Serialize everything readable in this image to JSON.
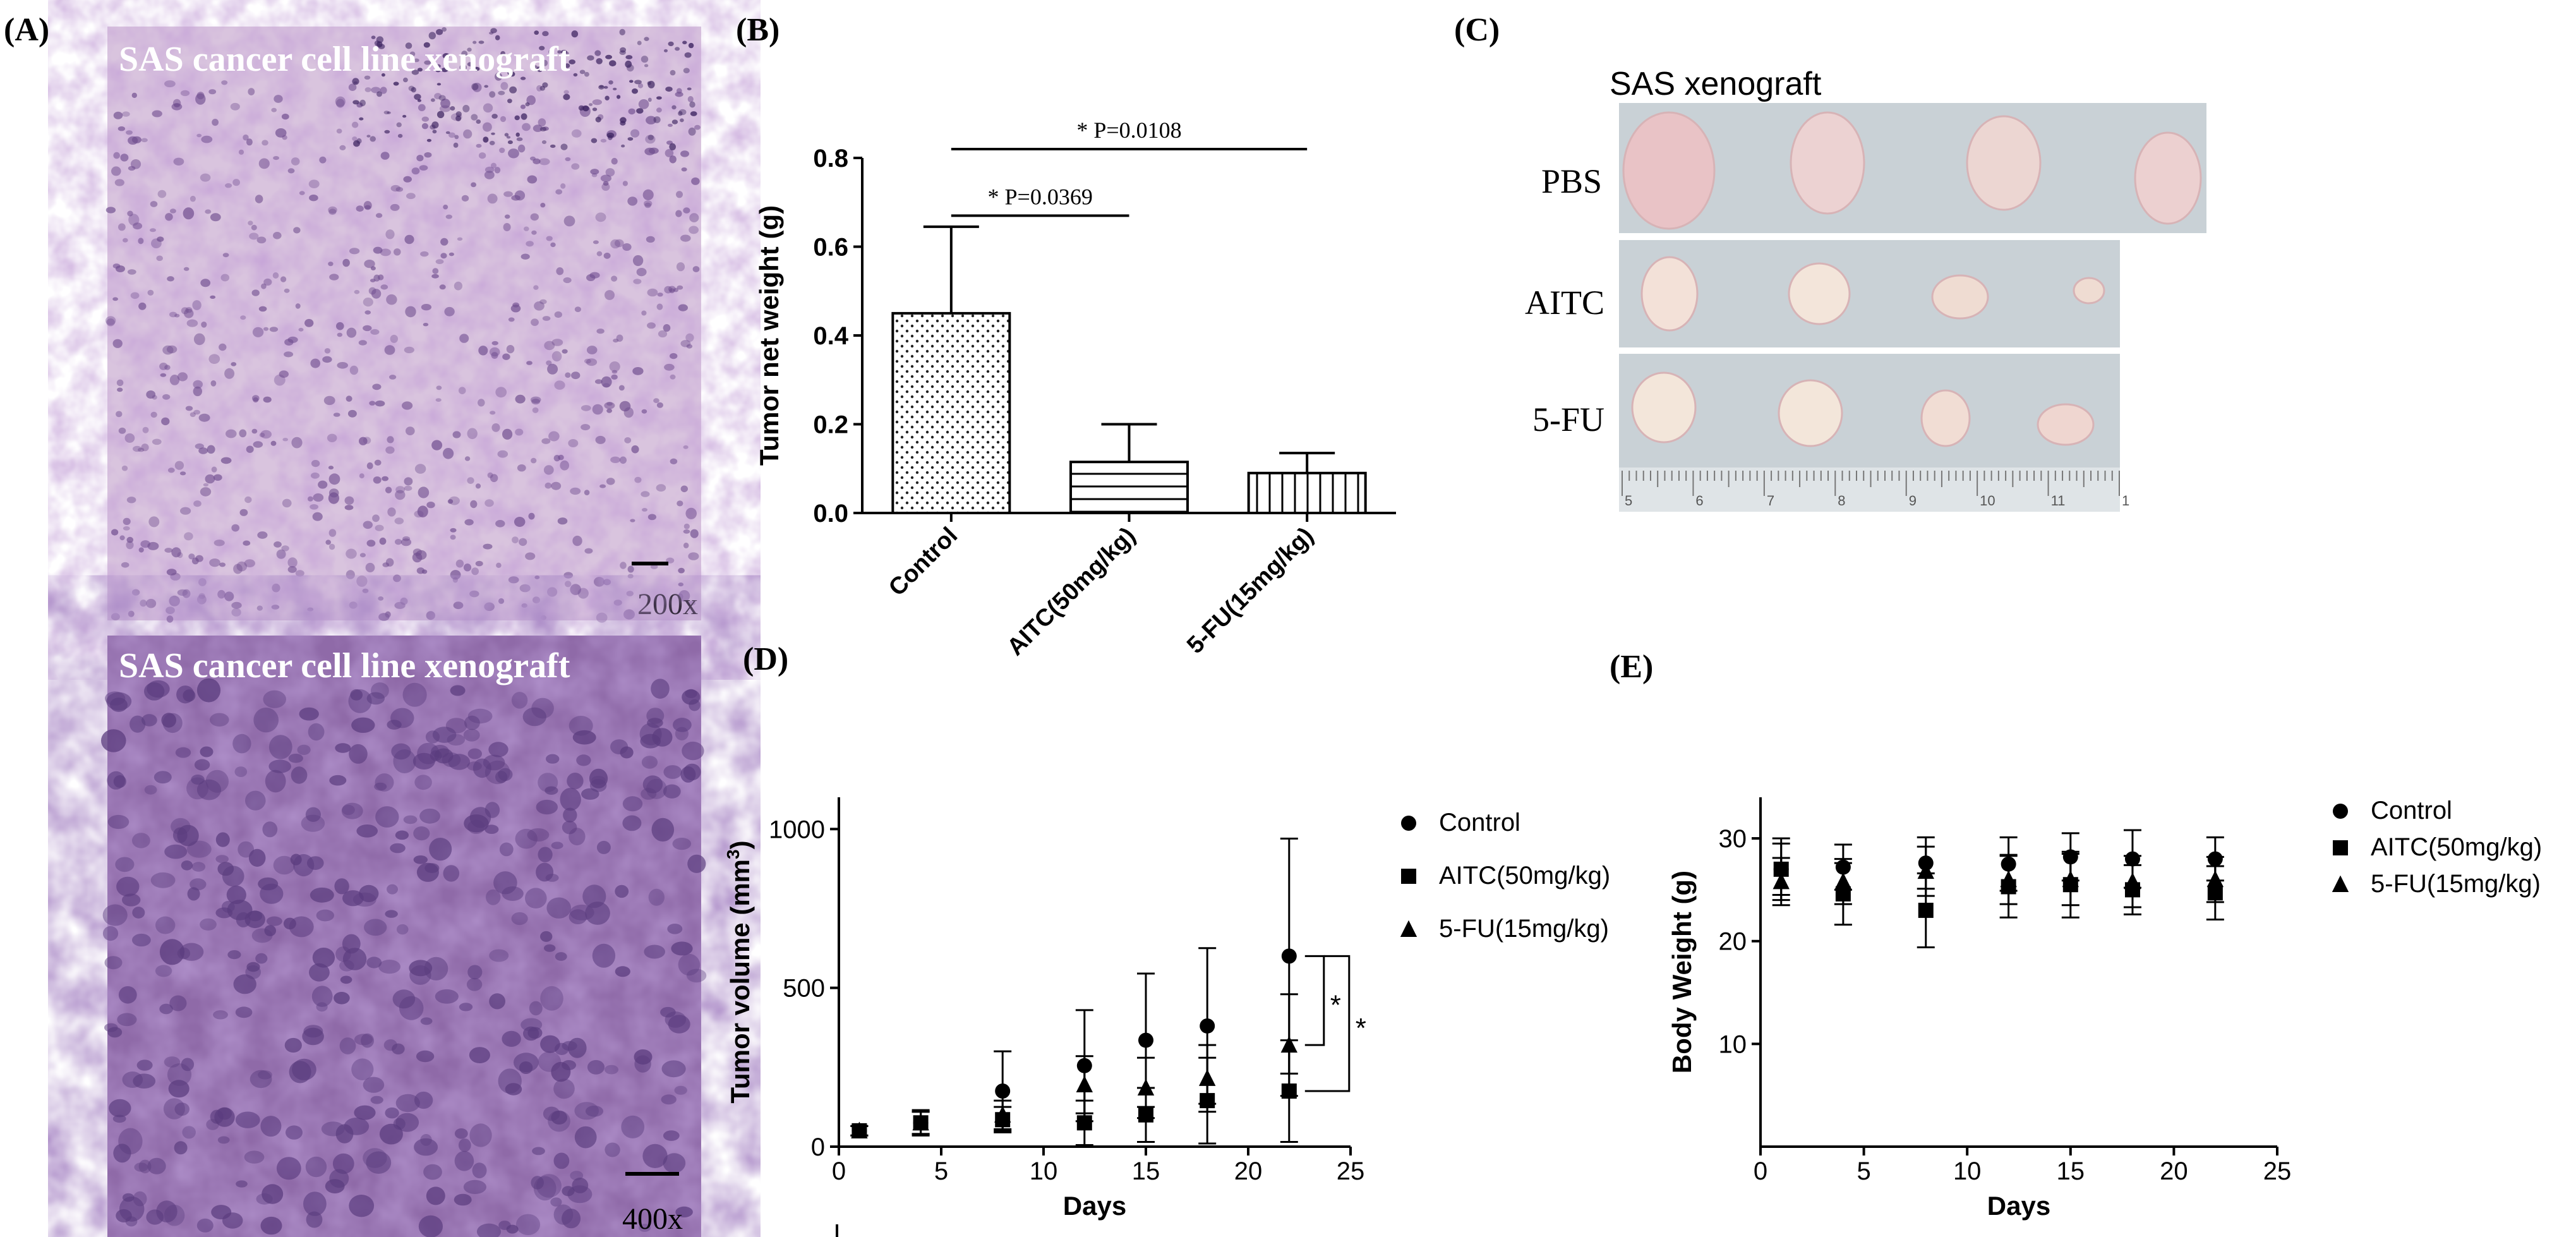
{
  "figure": {
    "panel_labels": {
      "a": "(A)",
      "b": "(B)",
      "c": "(C)",
      "d": "(D)",
      "e": "(E)"
    },
    "panel_a": {
      "top_caption": "SAS cancer cell line xenograft",
      "top_magnification": "200x",
      "bottom_caption": "SAS cancer cell line xenograft",
      "bottom_magnification": "400x",
      "colors": {
        "tissue_light": "#d9c4de",
        "tissue_dark": "#8f6aa8",
        "nucleus": "#6f4d8e"
      }
    },
    "panel_c": {
      "title": "SAS xenograft",
      "rows": [
        "PBS",
        "AITC",
        "5-FU"
      ],
      "ruler_numbers": [
        "5",
        "6",
        "7",
        "8",
        "9",
        "10",
        "11",
        "1"
      ]
    }
  },
  "chart_data": [
    {
      "id": "B",
      "type": "bar",
      "categories": [
        "Control",
        "AITC(50mg/kg)",
        "5-FU(15mg/kg)"
      ],
      "values": [
        0.45,
        0.115,
        0.09
      ],
      "errors": [
        0.195,
        0.085,
        0.045
      ],
      "patterns": [
        "dots",
        "horizontal",
        "vertical"
      ],
      "ylabel": "Tumor net weight (g)",
      "xlabel": "",
      "ylim": [
        0,
        0.8
      ],
      "yticks": [
        0.0,
        0.2,
        0.4,
        0.6,
        0.8
      ],
      "ytick_labels": [
        "0.0",
        "0.2",
        "0.4",
        "0.6",
        "0.8"
      ],
      "annotations": [
        {
          "from": 0,
          "to": 1,
          "text": "* P=0.0369",
          "y": 0.67
        },
        {
          "from": 0,
          "to": 2,
          "text": "* P=0.0108",
          "y": 0.82
        }
      ]
    },
    {
      "id": "D",
      "type": "scatter",
      "xlabel": "Days",
      "ylabel": "Tumor volume (mm",
      "ylabel_sup": "3",
      "ylabel_close": ")",
      "xlim": [
        0,
        25
      ],
      "ylim": [
        0,
        1100
      ],
      "xticks": [
        0,
        5,
        10,
        15,
        20,
        25
      ],
      "xtick_labels": [
        "0",
        "5",
        "10",
        "15",
        "20",
        "25"
      ],
      "yticks": [
        0,
        500,
        1000
      ],
      "ytick_labels": [
        "0",
        "500",
        "1000"
      ],
      "series": [
        {
          "name": "Control",
          "marker": "circle",
          "x": [
            1,
            4,
            8,
            12,
            15,
            18,
            22
          ],
          "y": [
            50,
            75,
            175,
            255,
            335,
            380,
            600
          ],
          "err": [
            15,
            40,
            125,
            175,
            210,
            245,
            370
          ]
        },
        {
          "name": "AITC(50mg/kg)",
          "marker": "square",
          "x": [
            1,
            4,
            8,
            12,
            15,
            18,
            22
          ],
          "y": [
            50,
            75,
            85,
            75,
            100,
            145,
            175
          ],
          "err": [
            15,
            35,
            40,
            70,
            85,
            135,
            160
          ]
        },
        {
          "name": "5-FU(15mg/kg)",
          "marker": "triangle",
          "x": [
            1,
            4,
            8,
            12,
            15,
            18,
            22
          ],
          "y": [
            50,
            75,
            100,
            195,
            185,
            215,
            320
          ],
          "err": [
            15,
            35,
            45,
            90,
            95,
            105,
            160
          ]
        }
      ],
      "significance": [
        "*",
        "*"
      ]
    },
    {
      "id": "E",
      "type": "scatter",
      "xlabel": "Days",
      "ylabel": "Body Weight (g)",
      "xlim": [
        0,
        25
      ],
      "ylim": [
        0,
        34
      ],
      "xticks": [
        0,
        5,
        10,
        15,
        20,
        25
      ],
      "xtick_labels": [
        "0",
        "5",
        "10",
        "15",
        "20",
        "25"
      ],
      "yticks": [
        10,
        20,
        30
      ],
      "ytick_labels": [
        "10",
        "20",
        "30"
      ],
      "series": [
        {
          "name": "Control",
          "marker": "circle",
          "x": [
            1,
            4,
            8,
            12,
            15,
            18,
            22
          ],
          "y": [
            27,
            27.2,
            27.6,
            27.5,
            28.2,
            28,
            28
          ],
          "err": [
            3,
            2.2,
            2.5,
            2.6,
            2.3,
            2.8,
            2.1
          ]
        },
        {
          "name": "AITC(50mg/kg)",
          "marker": "square",
          "x": [
            1,
            4,
            8,
            12,
            15,
            18,
            22
          ],
          "y": [
            27,
            24.6,
            23,
            25.3,
            25.5,
            25,
            24.7
          ],
          "err": [
            2.5,
            3,
            3.6,
            3,
            3.2,
            2.4,
            2.6
          ]
        },
        {
          "name": "5-FU(15mg/kg)",
          "marker": "triangle",
          "x": [
            1,
            4,
            8,
            12,
            15,
            18,
            22
          ],
          "y": [
            25.8,
            25.8,
            26.8,
            26,
            26,
            25.8,
            26
          ],
          "err": [
            2.3,
            2.2,
            2.4,
            2.4,
            2.5,
            2.5,
            2.2
          ]
        }
      ]
    }
  ]
}
